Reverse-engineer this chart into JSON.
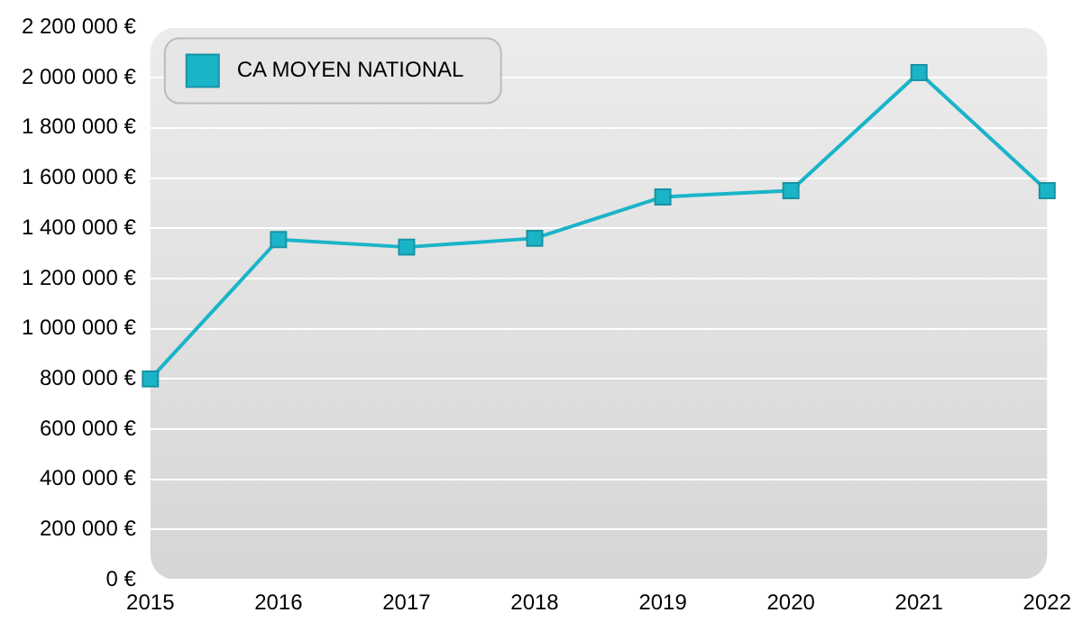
{
  "chart_data": {
    "type": "line",
    "categories": [
      "2015",
      "2016",
      "2017",
      "2018",
      "2019",
      "2020",
      "2021",
      "2022"
    ],
    "series": [
      {
        "name": "CA MOYEN NATIONAL",
        "color": "#1ab4c8",
        "values": [
          800000,
          1355000,
          1325000,
          1360000,
          1525000,
          1550000,
          2020000,
          1550000
        ]
      }
    ],
    "ylim": [
      0,
      2200000
    ],
    "yticks": [
      {
        "value": 0,
        "label": "0 €"
      },
      {
        "value": 200000,
        "label": "200 000 €"
      },
      {
        "value": 400000,
        "label": "400 000 €"
      },
      {
        "value": 600000,
        "label": "600 000 €"
      },
      {
        "value": 800000,
        "label": "800 000 €"
      },
      {
        "value": 1000000,
        "label": "1 000 000 €"
      },
      {
        "value": 1200000,
        "label": "1 200 000 €"
      },
      {
        "value": 1400000,
        "label": "1 400 000 €"
      },
      {
        "value": 1600000,
        "label": "1 600 000 €"
      },
      {
        "value": 1800000,
        "label": "1 800 000 €"
      },
      {
        "value": 2000000,
        "label": "2 000 000 €"
      },
      {
        "value": 2200000,
        "label": "2 200 000 €"
      }
    ],
    "grid": "y",
    "legend": "top left",
    "marker": "square",
    "line_style": "solid"
  }
}
